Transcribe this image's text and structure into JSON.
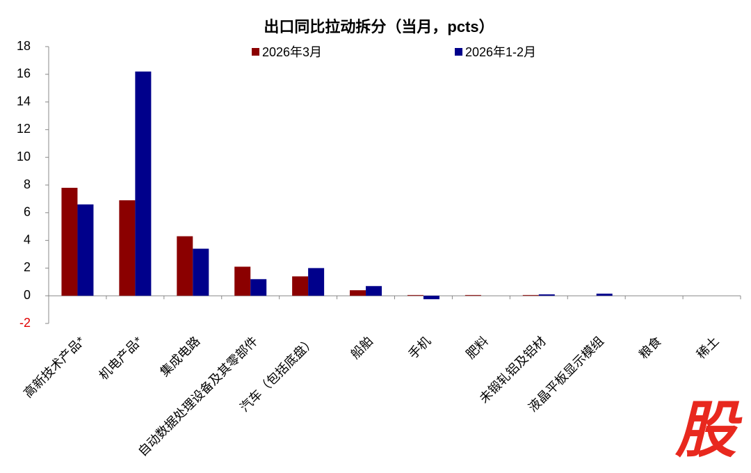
{
  "chart_data": {
    "type": "bar",
    "title": "出口同比拉动拆分（当月，pcts）",
    "categories": [
      "高新技术产品*",
      "机电产品*",
      "集成电路",
      "自动数据处理设备及其零部件",
      "汽车（包括底盘）",
      "船舶",
      "手机",
      "肥料",
      "未锻轧铝及铝材",
      "液晶平板显示模组",
      "粮食",
      "稀土"
    ],
    "series": [
      {
        "name": "2026年3月",
        "color": "#8b0000",
        "values": [
          7.8,
          6.9,
          4.3,
          2.1,
          1.4,
          0.4,
          0.05,
          0.05,
          0.05,
          0,
          0,
          0
        ]
      },
      {
        "name": "2026年1-2月",
        "color": "#00008b",
        "values": [
          6.6,
          16.2,
          3.4,
          1.2,
          2.0,
          0.7,
          -0.25,
          0,
          0.1,
          0.15,
          0,
          0
        ]
      }
    ],
    "ylim": [
      -2,
      18
    ],
    "yticks": [
      -2,
      0,
      2,
      4,
      6,
      8,
      10,
      12,
      14,
      16,
      18
    ],
    "grid": false,
    "legend": "top"
  },
  "watermark": "股"
}
